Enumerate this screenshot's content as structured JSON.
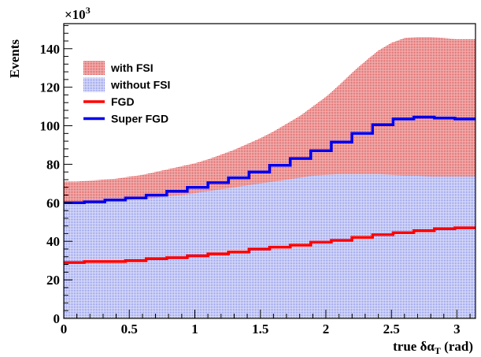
{
  "chart_data": {
    "type": "area",
    "xlabel": "true  δα",
    "xlabel_sub": "T",
    "xlabel_unit": " (rad)",
    "ylabel": "Events",
    "y_multiplier": "×10",
    "y_multiplier_exp": "3",
    "xlim": [
      0,
      3.1416
    ],
    "ylim": [
      0,
      153
    ],
    "x_ticks": [
      0,
      0.5,
      1,
      1.5,
      2,
      2.5,
      3
    ],
    "x_tick_labels": [
      "0",
      "0.5",
      "1",
      "1.5",
      "2",
      "2.5",
      "3"
    ],
    "y_ticks": [
      0,
      20,
      40,
      60,
      80,
      100,
      120,
      140
    ],
    "y_tick_labels": [
      "0",
      "20",
      "40",
      "60",
      "80",
      "100",
      "120",
      "140"
    ],
    "legend_position": "top-left",
    "bin_edges": [
      0,
      0.1571,
      0.3142,
      0.4712,
      0.6283,
      0.7854,
      0.9425,
      1.0996,
      1.2566,
      1.4137,
      1.5708,
      1.7279,
      1.885,
      2.042,
      2.1991,
      2.3562,
      2.5133,
      2.6704,
      2.8274,
      2.9845,
      3.1416
    ],
    "series": [
      {
        "name": "with FSI",
        "style": "hatched-fill",
        "color": "#e04848",
        "x": [
          0.0,
          0.1,
          0.2,
          0.3,
          0.4,
          0.5,
          0.6,
          0.7,
          0.8,
          0.9,
          1.0,
          1.1,
          1.2,
          1.3,
          1.4,
          1.5,
          1.6,
          1.7,
          1.8,
          1.9,
          2.0,
          2.1,
          2.2,
          2.3,
          2.4,
          2.5,
          2.6,
          2.7,
          2.8,
          2.9,
          3.0,
          3.1,
          3.1416
        ],
        "values": [
          71,
          71,
          71.5,
          72,
          72.5,
          73.5,
          74.5,
          76,
          77.5,
          79,
          80.5,
          82.5,
          85,
          87.5,
          90.5,
          93.5,
          97,
          101,
          105,
          110,
          115,
          121,
          127.5,
          133.5,
          139,
          143,
          145.5,
          146,
          146,
          145.5,
          145,
          145,
          145
        ]
      },
      {
        "name": "without FSI",
        "style": "hatched-fill",
        "color": "#7f88e6",
        "x": [
          0.0,
          0.1,
          0.2,
          0.3,
          0.4,
          0.5,
          0.6,
          0.7,
          0.8,
          0.9,
          1.0,
          1.1,
          1.2,
          1.3,
          1.4,
          1.5,
          1.6,
          1.7,
          1.8,
          1.9,
          2.0,
          2.1,
          2.2,
          2.3,
          2.4,
          2.5,
          2.6,
          2.7,
          2.8,
          2.9,
          3.0,
          3.1,
          3.1416
        ],
        "values": [
          59.5,
          59.5,
          60,
          60.5,
          61,
          61.5,
          62,
          62.5,
          63.5,
          64,
          65,
          66,
          67,
          68,
          69,
          70,
          71,
          72,
          73,
          74,
          74.5,
          75,
          75,
          75,
          75,
          74.5,
          74,
          74,
          73.5,
          73.5,
          73.5,
          73.5,
          73.5
        ]
      },
      {
        "name": "FGD",
        "style": "step-line",
        "color": "#ff0000",
        "values": [
          29,
          29.5,
          29.5,
          30,
          31,
          31.5,
          32.5,
          33.5,
          34.5,
          36,
          37,
          38,
          39.5,
          40.5,
          42,
          43.5,
          44.5,
          45.5,
          46.5,
          47
        ]
      },
      {
        "name": "Super FGD",
        "style": "step-line",
        "color": "#0000ee",
        "values": [
          60,
          60.5,
          61.5,
          62.5,
          64,
          66,
          68,
          70.5,
          73,
          76,
          79.5,
          83,
          87,
          91.5,
          96,
          100.5,
          103.5,
          104.5,
          104,
          103.5
        ]
      }
    ]
  }
}
